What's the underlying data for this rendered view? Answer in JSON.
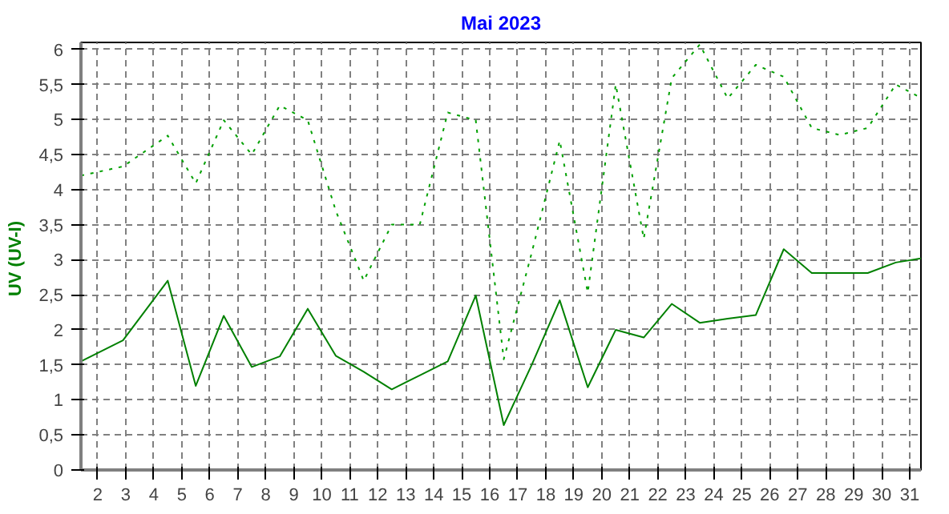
{
  "chart_data": {
    "type": "line",
    "title": "Mai 2023",
    "ylabel": "UV  (UV-I)",
    "x": [
      1.4,
      2.9,
      4.5,
      5.5,
      6.5,
      7.5,
      8.5,
      9.5,
      10.5,
      11.5,
      12.5,
      13.5,
      14.5,
      15.5,
      16.5,
      17.5,
      18.5,
      19.5,
      20.5,
      21.5,
      22.5,
      23.5,
      24.5,
      25.5,
      26.5,
      27.5,
      28.5,
      29.5,
      30.5,
      31.4
    ],
    "series": [
      {
        "color": "#00a000",
        "line_style": "dotted",
        "values": [
          4.2,
          4.33,
          4.77,
          4.09,
          4.99,
          4.5,
          5.2,
          4.99,
          3.7,
          2.7,
          3.5,
          3.5,
          5.1,
          4.99,
          1.58,
          3.1,
          4.7,
          2.53,
          5.5,
          3.3,
          5.59,
          6.07,
          5.3,
          5.78,
          5.61,
          4.88,
          4.78,
          4.88,
          5.5,
          5.31
        ]
      },
      {
        "color": "#008000",
        "line_style": "solid",
        "values": [
          1.55,
          1.85,
          2.7,
          1.2,
          2.2,
          1.47,
          1.62,
          2.3,
          1.63,
          1.4,
          1.15,
          1.35,
          1.55,
          2.49,
          0.64,
          1.5,
          2.42,
          1.18,
          2.0,
          1.89,
          2.37,
          2.1,
          2.16,
          2.21,
          3.15,
          2.81,
          2.81,
          2.81,
          2.96,
          3.02
        ]
      }
    ],
    "xlim": [
      1.4,
      31.4
    ],
    "ylim": [
      0,
      6.1
    ],
    "xticks": [
      2,
      3,
      4,
      5,
      6,
      7,
      8,
      9,
      10,
      11,
      12,
      13,
      14,
      15,
      16,
      17,
      18,
      19,
      20,
      21,
      22,
      23,
      24,
      25,
      26,
      27,
      28,
      29,
      30,
      31
    ],
    "yticks": [
      0,
      {
        "value": 0.5,
        "label": "0,5"
      },
      1,
      {
        "value": 1.5,
        "label": "1,5"
      },
      2,
      {
        "value": 2.5,
        "label": "2,5"
      },
      3,
      {
        "value": 3.5,
        "label": "3,5"
      },
      4,
      {
        "value": 4.5,
        "label": "4,5"
      },
      5,
      {
        "value": 5.5,
        "label": "5,5"
      },
      6
    ],
    "grid": true
  }
}
